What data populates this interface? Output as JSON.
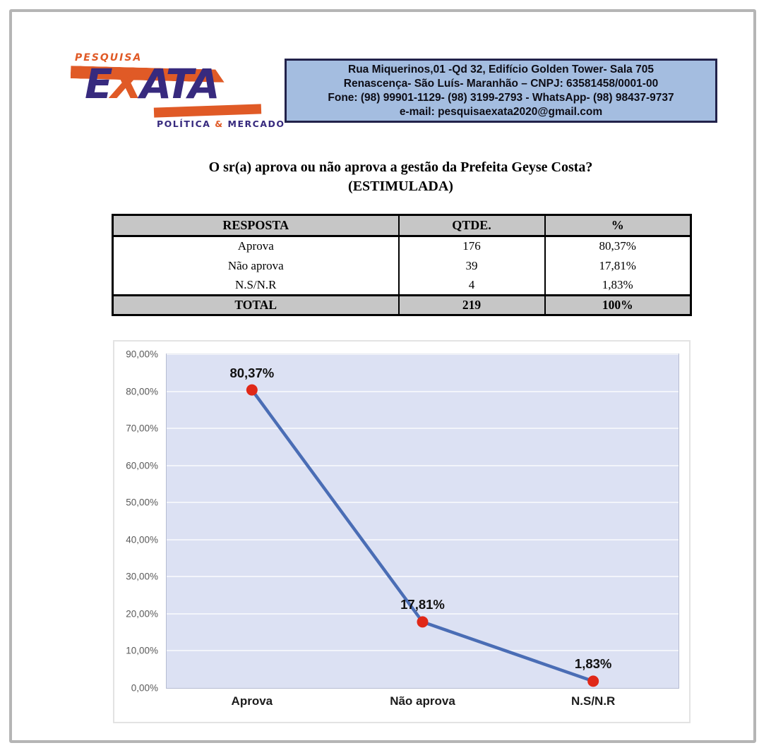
{
  "logo": {
    "top_label": "PESQUISA",
    "wordmark_e": "E",
    "wordmark_x": "X",
    "wordmark_ata": "ATA",
    "tagline_left": "POLÍTICA ",
    "tagline_amp": "&",
    "tagline_right": " MERCADO",
    "orange": "#e05a26",
    "navy": "#372a7e"
  },
  "address_box": {
    "lines": [
      "Rua Miquerinos,01 -Qd 32, Edifício Golden Tower- Sala 705",
      "Renascença- São Luís- Maranhão – CNPJ: 63581458/0001-00",
      "Fone: (98) 99901-1129- (98) 3199-2793 - WhatsApp- (98) 98437-9737",
      "e-mail: pesquisaexata2020@gmail.com"
    ]
  },
  "title": {
    "line1": "O sr(a) aprova ou não aprova a gestão da Prefeita Geyse Costa?",
    "line2": "(ESTIMULADA)"
  },
  "table": {
    "headers": [
      "RESPOSTA",
      "QTDE.",
      "%"
    ],
    "rows": [
      [
        "Aprova",
        "176",
        "80,37%"
      ],
      [
        "Não aprova",
        "39",
        "17,81%"
      ],
      [
        "N.S/N.R",
        "4",
        "1,83%"
      ]
    ],
    "total": [
      "TOTAL",
      "219",
      "100%"
    ]
  },
  "chart_data": {
    "type": "line",
    "categories": [
      "Aprova",
      "Não aprova",
      "N.S/N.R"
    ],
    "values": [
      80.37,
      17.81,
      1.83
    ],
    "point_labels": [
      "80,37%",
      "17,81%",
      "1,83%"
    ],
    "ylim": [
      0,
      90
    ],
    "yticks": [
      {
        "value": 0,
        "label": "0,00%"
      },
      {
        "value": 10,
        "label": "10,00%"
      },
      {
        "value": 20,
        "label": "20,00%"
      },
      {
        "value": 30,
        "label": "30,00%"
      },
      {
        "value": 40,
        "label": "40,00%"
      },
      {
        "value": 50,
        "label": "50,00%"
      },
      {
        "value": 60,
        "label": "60,00%"
      },
      {
        "value": 70,
        "label": "70,00%"
      },
      {
        "value": 80,
        "label": "80,00%"
      },
      {
        "value": 90,
        "label": "90,00%"
      }
    ],
    "grid": true,
    "legend": false,
    "line_color": "#4a6db5",
    "marker_color": "#e02818",
    "plot_bg": "#dce1f3"
  }
}
